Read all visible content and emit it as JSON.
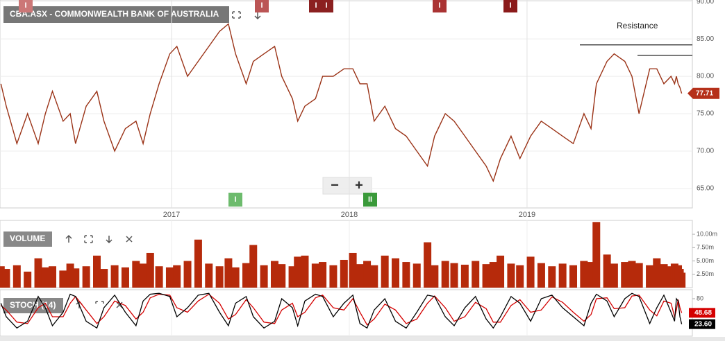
{
  "chart_data": [
    {
      "type": "line",
      "title": "CBA.ASX - COMMONWEALTH BANK OF AUSTRALIA",
      "color": "#9a3216",
      "x": [
        2016.04,
        2016.07,
        2016.13,
        2016.19,
        2016.25,
        2016.29,
        2016.33,
        2016.39,
        2016.43,
        2016.46,
        2016.52,
        2016.58,
        2016.62,
        2016.68,
        2016.74,
        2016.8,
        2016.84,
        2016.88,
        2016.93,
        2016.99,
        2017.03,
        2017.09,
        2017.15,
        2017.21,
        2017.27,
        2017.32,
        2017.36,
        2017.42,
        2017.46,
        2017.52,
        2017.58,
        2017.62,
        2017.68,
        2017.71,
        2017.75,
        2017.81,
        2017.85,
        2017.91,
        2017.97,
        2018.02,
        2018.06,
        2018.1,
        2018.14,
        2018.2,
        2018.26,
        2018.32,
        2018.38,
        2018.44,
        2018.48,
        2018.54,
        2018.59,
        2018.65,
        2018.71,
        2018.77,
        2018.81,
        2018.85,
        2018.91,
        2018.96,
        2019.02,
        2019.08,
        2019.14,
        2019.2,
        2019.26,
        2019.32,
        2019.36,
        2019.39,
        2019.45,
        2019.49,
        2019.55,
        2019.59,
        2019.63,
        2019.69,
        2019.73,
        2019.77,
        2019.81,
        2019.83,
        2019.84,
        2019.85,
        2019.86,
        2019.87
      ],
      "values": [
        79,
        76,
        71,
        75,
        71,
        75,
        78,
        74,
        75,
        71,
        76,
        78,
        74,
        70,
        73,
        74,
        71,
        75,
        79,
        83,
        84,
        80,
        82,
        84,
        86,
        87,
        83,
        79,
        82,
        83,
        84,
        80,
        77,
        74,
        76,
        77,
        80,
        80,
        81,
        81,
        79,
        79,
        74,
        76,
        73,
        72,
        70,
        68,
        72,
        75,
        74,
        72,
        70,
        68,
        66,
        69,
        72,
        69,
        72,
        74,
        73,
        72,
        71,
        75,
        73,
        79,
        82,
        83,
        82,
        80,
        75,
        81,
        81,
        79,
        80,
        79,
        80,
        79,
        78.5,
        77.71
      ],
      "xlim": [
        2016.035,
        2019.93
      ],
      "xticks": [
        2017,
        2018,
        2019
      ],
      "ylim": [
        62.4,
        90.2
      ],
      "yticks": [
        {
          "value": 90,
          "label": "90.00"
        },
        {
          "value": 85,
          "label": "85.00"
        },
        {
          "value": 80,
          "label": "80.00"
        },
        {
          "value": 75,
          "label": "75.00"
        },
        {
          "value": 70,
          "label": "70.00"
        },
        {
          "value": 65,
          "label": "65.00"
        }
      ],
      "grid": true,
      "annotation": {
        "label": "Resistance",
        "levels": [
          84.2,
          82.8
        ]
      },
      "events": [
        "I",
        "I",
        "I",
        "I",
        "I",
        "I",
        "I",
        "II"
      ],
      "controls": [
        "−",
        "+"
      ]
    },
    {
      "type": "bar",
      "title": "VOLUME",
      "color": "#b62a0b",
      "values": [
        4,
        3.5,
        4.2,
        3,
        5.5,
        3.8,
        4,
        3.2,
        4.5,
        3.6,
        4,
        6,
        3.5,
        4.2,
        3.8,
        5,
        4.5,
        6.5,
        4,
        3.8,
        4.2,
        5,
        9,
        4.5,
        4,
        5.5,
        3.8,
        4.6,
        8,
        4.2,
        5,
        4.4,
        4,
        5.8,
        6,
        4.5,
        4.8,
        4.2,
        5.2,
        6.5,
        4.4,
        5,
        4.2,
        6,
        5.5,
        4.8,
        4.5,
        8.5,
        4.2,
        5,
        4.6,
        4.3,
        5,
        4.4,
        4.8,
        6,
        4.5,
        4.2,
        5.8,
        4.6,
        4,
        4.5,
        4.2,
        5,
        4.8,
        12.3,
        6.2,
        4.5,
        4.8,
        5,
        4.6,
        4.2,
        5.5,
        4.4,
        4,
        4.5,
        3.8,
        4.2,
        3.5,
        2.8
      ],
      "ylim": [
        0,
        12.6
      ],
      "yticks": [
        {
          "value": 10,
          "label": "10.00m"
        },
        {
          "value": 7.5,
          "label": "7.50m"
        },
        {
          "value": 5,
          "label": "5.00m"
        },
        {
          "value": 2.5,
          "label": "2.50m"
        }
      ]
    },
    {
      "type": "line",
      "title": "STOCH (14)",
      "series": [
        {
          "color": "#000000",
          "values": [
            70,
            40,
            15,
            30,
            85,
            60,
            20,
            50,
            90,
            85,
            30,
            15,
            60,
            88,
            50,
            20,
            75,
            90,
            92,
            85,
            40,
            60,
            88,
            92,
            50,
            20,
            70,
            85,
            40,
            15,
            30,
            80,
            60,
            20,
            75,
            90,
            85,
            40,
            70,
            88,
            25,
            15,
            55,
            80,
            30,
            15,
            50,
            88,
            85,
            40,
            20,
            60,
            85,
            35,
            15,
            40,
            85,
            70,
            30,
            80,
            88,
            60,
            40,
            20,
            70,
            90,
            75,
            40,
            80,
            92,
            85,
            25,
            60,
            88,
            50,
            30,
            80,
            75,
            40,
            23.6
          ],
          "last_label": "23.60"
        },
        {
          "color": "#d40000",
          "values": [
            65,
            55,
            28,
            25,
            60,
            70,
            40,
            40,
            70,
            85,
            55,
            25,
            40,
            75,
            65,
            35,
            50,
            82,
            90,
            88,
            60,
            50,
            75,
            90,
            70,
            35,
            45,
            78,
            60,
            28,
            25,
            55,
            70,
            40,
            50,
            82,
            88,
            60,
            55,
            80,
            50,
            22,
            35,
            68,
            55,
            25,
            35,
            70,
            86,
            60,
            30,
            40,
            72,
            58,
            28,
            28,
            65,
            78,
            50,
            55,
            84,
            72,
            50,
            30,
            45,
            80,
            82,
            58,
            60,
            86,
            88,
            55,
            42,
            75,
            70,
            40,
            55,
            78,
            60,
            48.68
          ]
        }
      ],
      "ylim": [
        0,
        100
      ],
      "yticks": [
        80
      ]
    }
  ]
}
